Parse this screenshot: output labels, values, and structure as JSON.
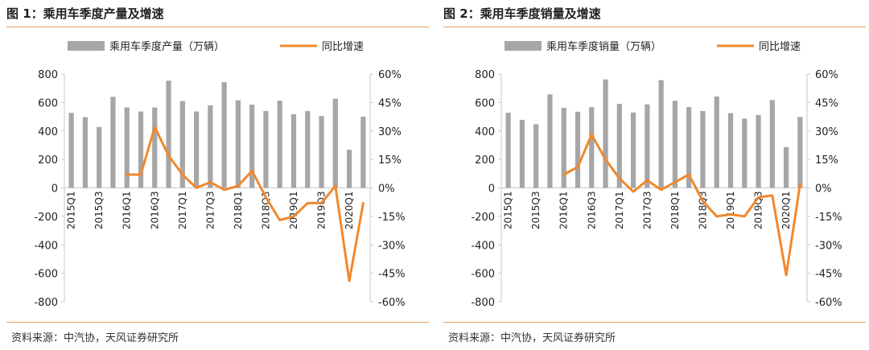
{
  "source": "资料来源：中汽协，天风证券研究所",
  "chart_data": [
    {
      "type": "bar",
      "title": "图 1：乘用车季度产量及增速",
      "legend": [
        "乘用车季度产量（万辆）",
        "同比增速"
      ],
      "categories": [
        "2015Q1",
        "2015Q2",
        "2015Q3",
        "2015Q4",
        "2016Q1",
        "2016Q2",
        "2016Q3",
        "2016Q4",
        "2017Q1",
        "2017Q2",
        "2017Q3",
        "2017Q4",
        "2018Q1",
        "2018Q2",
        "2018Q3",
        "2018Q4",
        "2019Q1",
        "2019Q2",
        "2019Q3",
        "2019Q4",
        "2020Q1",
        "2020Q2"
      ],
      "xtick_labels": [
        "2015Q1",
        "",
        "2015Q3",
        "",
        "2016Q1",
        "",
        "2016Q3",
        "",
        "2017Q1",
        "",
        "2017Q3",
        "",
        "2018Q1",
        "",
        "2018Q3",
        "",
        "2019Q1",
        "",
        "2019Q3",
        "",
        "2020Q1",
        ""
      ],
      "series": [
        {
          "name": "乘用车季度产量（万辆）",
          "type": "bar",
          "axis": "left",
          "values": [
            527,
            497,
            428,
            640,
            565,
            537,
            565,
            753,
            610,
            537,
            580,
            743,
            615,
            585,
            540,
            613,
            518,
            540,
            505,
            627,
            268,
            500
          ]
        },
        {
          "name": "同比增速",
          "type": "line",
          "axis": "right",
          "values": [
            null,
            null,
            null,
            null,
            7,
            7,
            32,
            17,
            7,
            0,
            3,
            -1,
            1,
            9,
            -5,
            -17,
            -15,
            -8,
            -8,
            1,
            -49,
            -8
          ]
        }
      ],
      "left_axis": {
        "ylim": [
          -800,
          800
        ],
        "ticks": [
          -800,
          -600,
          -400,
          -200,
          0,
          200,
          400,
          600,
          800
        ],
        "tick_labels": [
          "-800",
          "-600",
          "-400",
          "-200",
          "0",
          "200",
          "400",
          "600",
          "800"
        ]
      },
      "right_axis": {
        "ylim": [
          -60,
          60
        ],
        "ticks": [
          -60,
          -45,
          -30,
          -15,
          0,
          15,
          30,
          45,
          60
        ],
        "tick_labels": [
          "-60%",
          "-45%",
          "-30%",
          "-15%",
          "0%",
          "15%",
          "30%",
          "45%",
          "60%"
        ]
      },
      "grid": false,
      "legend_position": "top",
      "colors": {
        "bar": "#a6a6a6",
        "line": "#f0882e"
      }
    },
    {
      "type": "bar",
      "title": "图 2：乘用车季度销量及增速",
      "legend": [
        "乘用车季度销量（万辆）",
        "同比增速"
      ],
      "categories": [
        "2015Q1",
        "2015Q2",
        "2015Q3",
        "2015Q4",
        "2016Q1",
        "2016Q2",
        "2016Q3",
        "2016Q4",
        "2017Q1",
        "2017Q2",
        "2017Q3",
        "2017Q4",
        "2018Q1",
        "2018Q2",
        "2018Q3",
        "2018Q4",
        "2019Q1",
        "2019Q2",
        "2019Q3",
        "2019Q4",
        "2020Q1",
        "2020Q2"
      ],
      "xtick_labels": [
        "2015Q1",
        "",
        "2015Q3",
        "",
        "2016Q1",
        "",
        "2016Q3",
        "",
        "2017Q1",
        "",
        "2017Q3",
        "",
        "2018Q1",
        "",
        "2018Q3",
        "",
        "2019Q1",
        "",
        "2019Q3",
        "",
        "2020Q1",
        ""
      ],
      "series": [
        {
          "name": "乘用车季度销量（万辆）",
          "type": "bar",
          "axis": "left",
          "values": [
            528,
            478,
            447,
            657,
            562,
            535,
            567,
            762,
            590,
            530,
            587,
            757,
            612,
            568,
            540,
            642,
            525,
            487,
            512,
            617,
            287,
            498
          ]
        },
        {
          "name": "同比增速",
          "type": "line",
          "axis": "right",
          "values": [
            null,
            null,
            null,
            null,
            7,
            11,
            28,
            15,
            5,
            -2,
            4,
            -1,
            3,
            7,
            -7,
            -15,
            -14,
            -15,
            -5,
            -4,
            -46,
            2
          ]
        }
      ],
      "left_axis": {
        "ylim": [
          -800,
          800
        ],
        "ticks": [
          -800,
          -600,
          -400,
          -200,
          0,
          200,
          400,
          600,
          800
        ],
        "tick_labels": [
          "-800",
          "-600",
          "-400",
          "-200",
          "0",
          "200",
          "400",
          "600",
          "800"
        ]
      },
      "right_axis": {
        "ylim": [
          -60,
          60
        ],
        "ticks": [
          -60,
          -45,
          -30,
          -15,
          0,
          15,
          30,
          45,
          60
        ],
        "tick_labels": [
          "-60%",
          "-45%",
          "-30%",
          "-15%",
          "0%",
          "15%",
          "30%",
          "45%",
          "60%"
        ]
      },
      "grid": false,
      "legend_position": "top",
      "colors": {
        "bar": "#a6a6a6",
        "line": "#f0882e"
      }
    }
  ]
}
